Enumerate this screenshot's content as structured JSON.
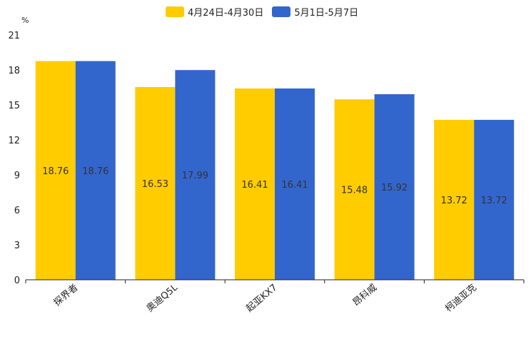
{
  "chart_data": {
    "type": "bar",
    "unit_label": "%",
    "categories": [
      "探界者",
      "奥迪Q5L",
      "起亚KX7",
      "昂科威",
      "柯迪亚克"
    ],
    "series": [
      {
        "name": "4月24日-4月30日",
        "color": "#ffcc00",
        "values": [
          18.76,
          16.53,
          16.41,
          15.48,
          13.72
        ]
      },
      {
        "name": "5月1日-5月7日",
        "color": "#3366cc",
        "values": [
          18.76,
          17.99,
          16.41,
          15.92,
          13.72
        ]
      }
    ],
    "yticks": [
      0,
      3,
      6,
      9,
      12,
      15,
      18,
      21
    ],
    "ylim": [
      0,
      21
    ],
    "legend_position": "top-center",
    "grid": false
  }
}
